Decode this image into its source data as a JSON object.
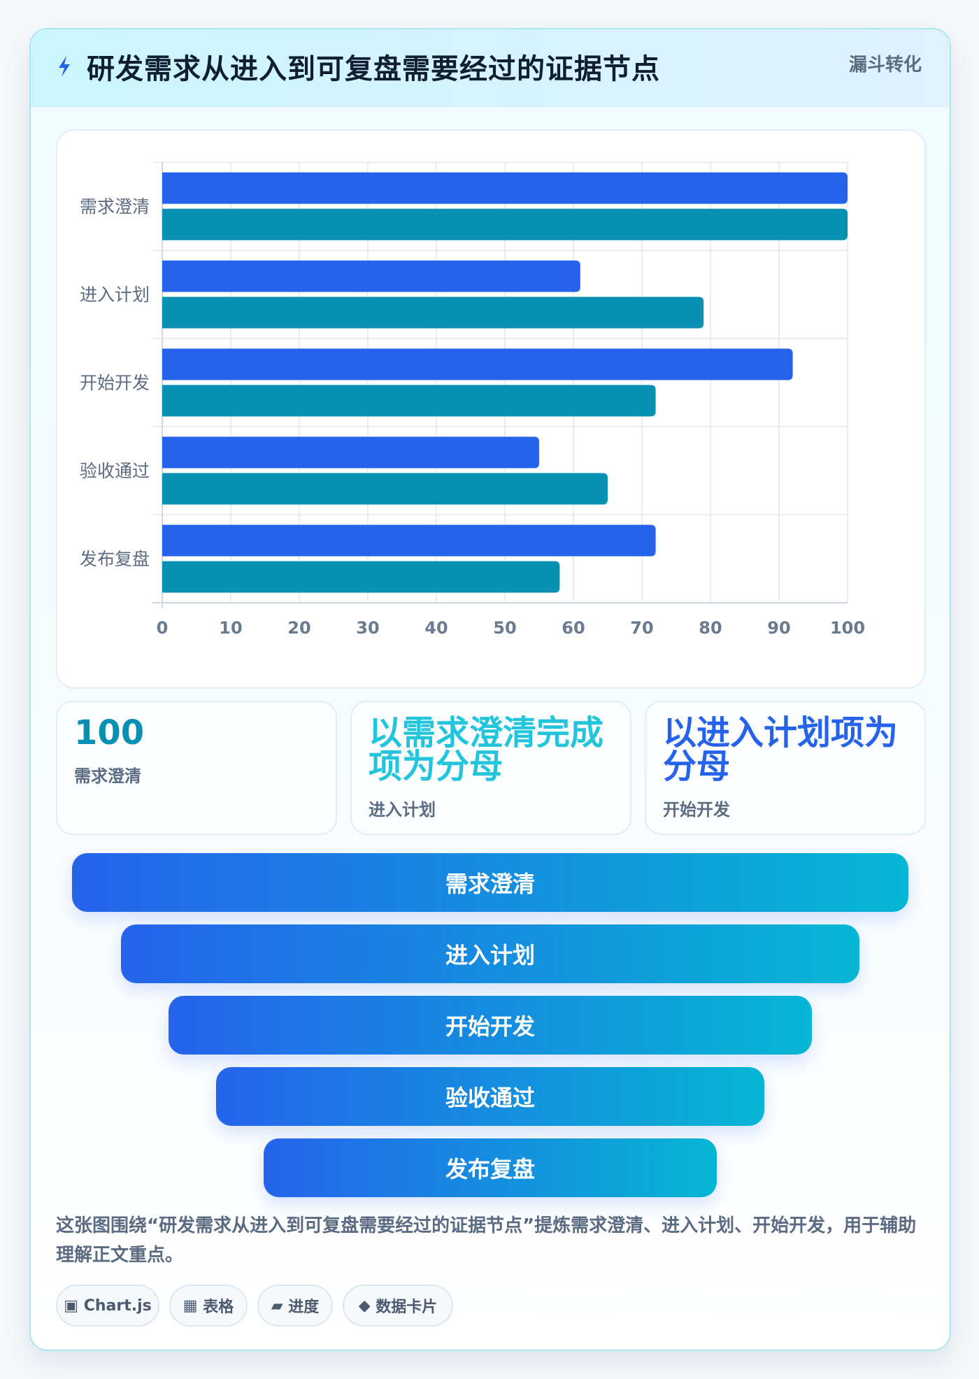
{
  "header": {
    "title": "研发需求从进入到可复盘需要经过的证据节点",
    "tag": "漏斗转化"
  },
  "chart_data": {
    "type": "bar",
    "orientation": "horizontal",
    "categories": [
      "需求澄清",
      "进入计划",
      "开始开发",
      "验收通过",
      "发布复盘"
    ],
    "series": [
      {
        "values": [
          100,
          61,
          92,
          55,
          72
        ],
        "color": "#2563eb"
      },
      {
        "values": [
          100,
          79,
          72,
          65,
          58
        ],
        "color": "#0891b2"
      }
    ],
    "xlim": [
      0,
      100
    ],
    "xticks": [
      0,
      10,
      20,
      30,
      40,
      50,
      60,
      70,
      80,
      90,
      100
    ],
    "grid": true,
    "legend": "none"
  },
  "stats": [
    {
      "value": "100",
      "label": "需求澄清",
      "color": "#0891b2"
    },
    {
      "value": "以需求澄清完成项为分母",
      "label": "进入计划",
      "color": "#22c5dc"
    },
    {
      "value": "以进入计划项为分母",
      "label": "开始开发",
      "color": "#2563eb"
    }
  ],
  "funnel": {
    "stages": [
      "需求澄清",
      "进入计划",
      "开始开发",
      "验收通过",
      "发布复盘"
    ]
  },
  "description": "这张图围绕“研发需求从进入到可复盘需要经过的证据节点”提炼需求澄清、进入计划、开始开发，用于辅助理解正文重点。",
  "chips": [
    {
      "icon": "▣",
      "label": "Chart.js"
    },
    {
      "icon": "▦",
      "label": "表格"
    },
    {
      "icon": "▰",
      "label": "进度"
    },
    {
      "icon": "◆",
      "label": "数据卡片"
    }
  ],
  "colors": {
    "accent_blue": "#2563eb",
    "accent_teal": "#0891b2",
    "accent_cyan": "#06b6d4"
  }
}
